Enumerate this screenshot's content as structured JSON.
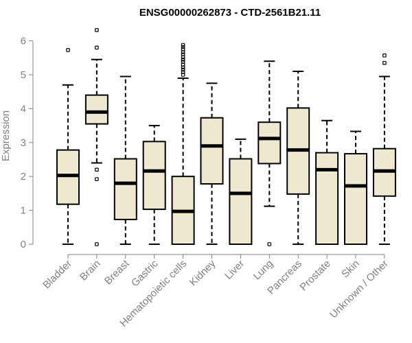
{
  "chart_data": {
    "type": "box",
    "title": "ENSG00000262873 - CTD-2561B21.11",
    "xlabel": "",
    "ylabel": "Expression",
    "ylim": [
      0,
      6.3
    ],
    "yticks": [
      0,
      1,
      2,
      3,
      4,
      5,
      6
    ],
    "grid": false,
    "colors": {
      "box_fill": "#eee8d0",
      "stroke": "#000000",
      "axis": "#808080"
    },
    "categories": [
      "Bladder",
      "Brain",
      "Breast",
      "Gastric",
      "Hematopoietic cells",
      "Kidney",
      "Liver",
      "Lung",
      "Pancreas",
      "Prostate",
      "Skin",
      "Unknown / Other"
    ],
    "boxes": [
      {
        "min": 0,
        "q1": 1.18,
        "median": 2.03,
        "q3": 2.78,
        "max": 4.7,
        "outliers": [
          5.73
        ]
      },
      {
        "min": 2.4,
        "q1": 3.55,
        "median": 3.9,
        "q3": 4.4,
        "max": 5.45,
        "outliers": [
          2.2,
          1.92,
          0,
          5.8,
          6.32
        ]
      },
      {
        "min": 0,
        "q1": 0.73,
        "median": 1.8,
        "q3": 2.52,
        "max": 4.95,
        "outliers": []
      },
      {
        "min": 0,
        "q1": 1.03,
        "median": 2.16,
        "q3": 3.03,
        "max": 3.5,
        "outliers": []
      },
      {
        "min": 0,
        "q1": 0,
        "median": 0.97,
        "q3": 2.0,
        "max": 4.9,
        "outliers": [
          5.0,
          5.08,
          5.15,
          5.22,
          5.3,
          5.38,
          5.45,
          5.52,
          5.6,
          5.67,
          5.75,
          5.82,
          5.88
        ]
      },
      {
        "min": 0,
        "q1": 1.78,
        "median": 2.9,
        "q3": 3.73,
        "max": 4.75,
        "outliers": []
      },
      {
        "min": 0,
        "q1": 0,
        "median": 1.5,
        "q3": 2.52,
        "max": 3.1,
        "outliers": []
      },
      {
        "min": 1.12,
        "q1": 2.38,
        "median": 3.12,
        "q3": 3.6,
        "max": 5.4,
        "outliers": [
          0
        ]
      },
      {
        "min": 0,
        "q1": 1.48,
        "median": 2.78,
        "q3": 4.02,
        "max": 5.1,
        "outliers": []
      },
      {
        "min": 0,
        "q1": 0,
        "median": 2.2,
        "q3": 2.7,
        "max": 3.65,
        "outliers": []
      },
      {
        "min": 0,
        "q1": 0,
        "median": 1.72,
        "q3": 2.67,
        "max": 3.33,
        "outliers": []
      },
      {
        "min": 0,
        "q1": 1.42,
        "median": 2.16,
        "q3": 2.82,
        "max": 4.95,
        "outliers": [
          5.35,
          5.57
        ]
      }
    ]
  }
}
